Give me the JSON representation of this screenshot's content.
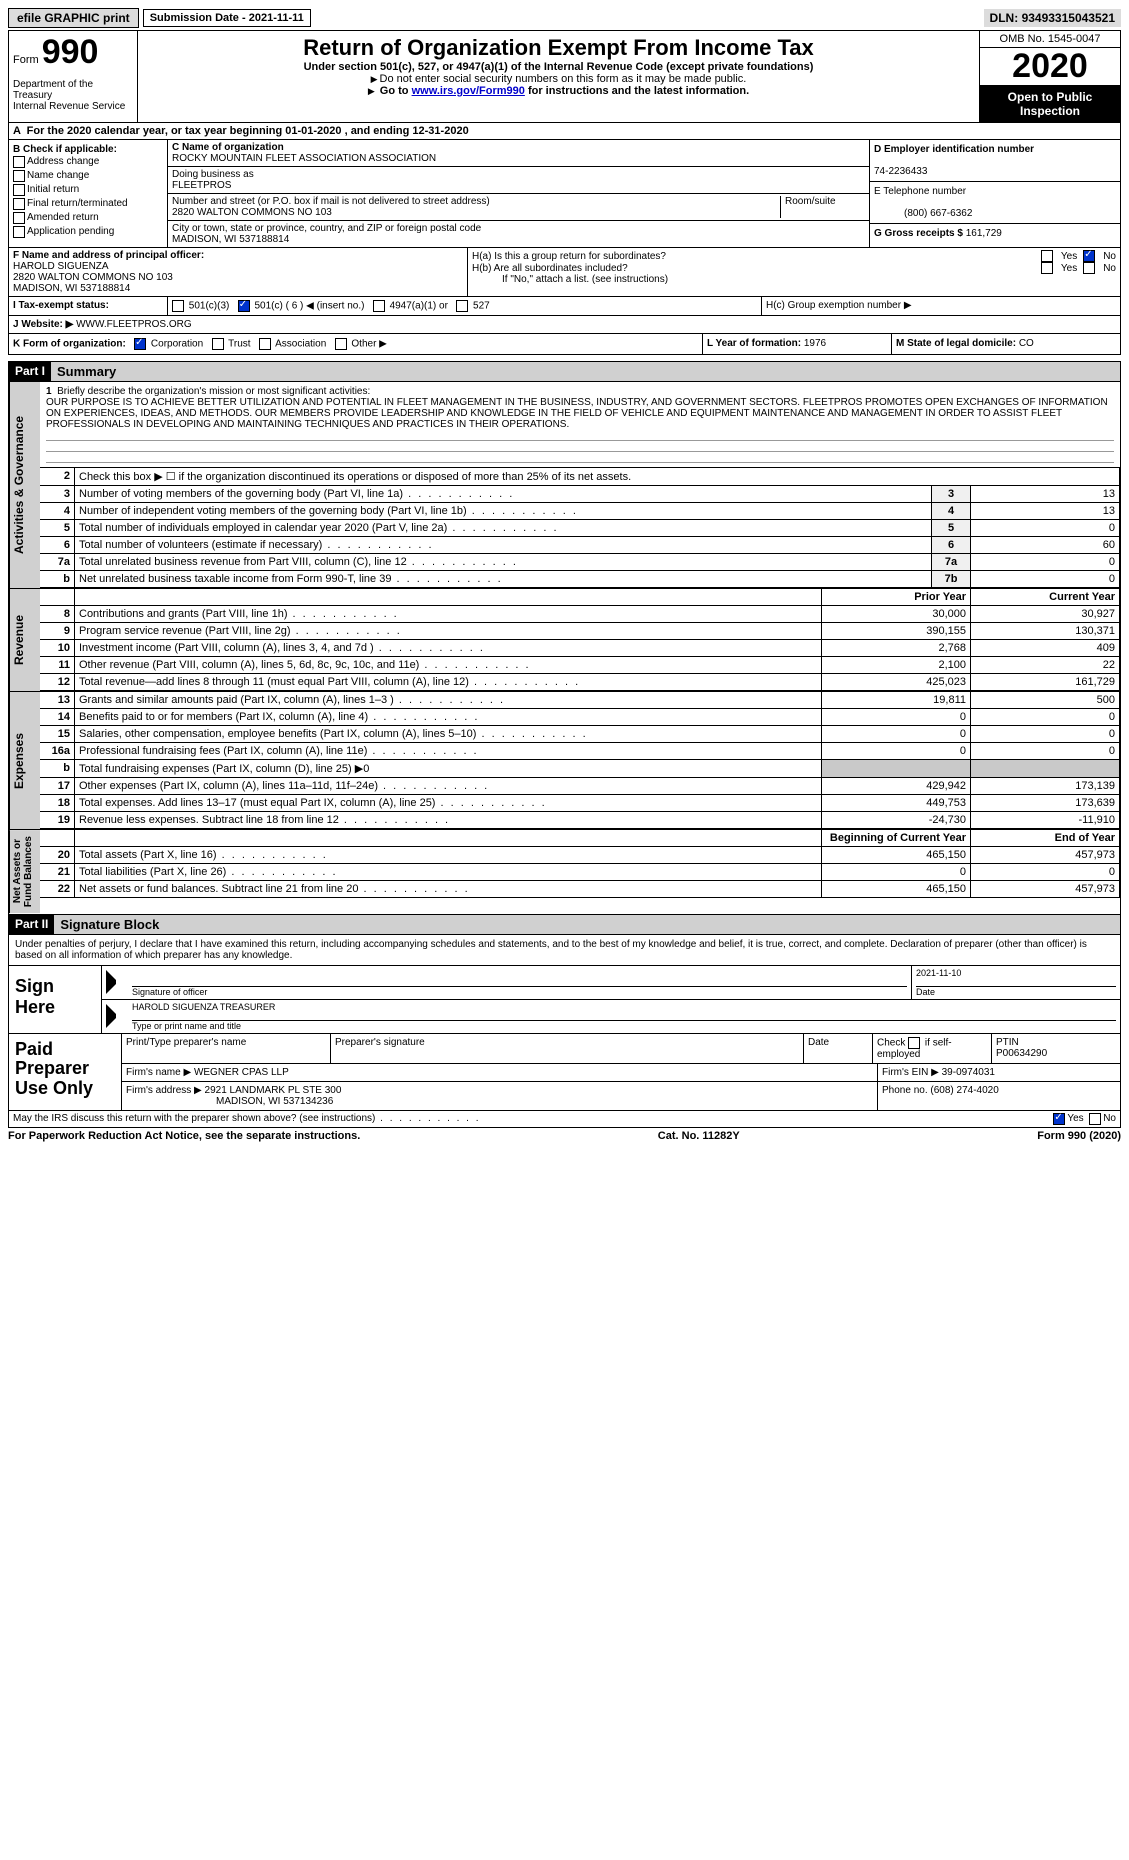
{
  "topbar": {
    "efile": "efile GRAPHIC print",
    "sub_label": "Submission Date -",
    "sub_date": "2021-11-11",
    "dln_label": "DLN:",
    "dln": "93493315043521"
  },
  "header": {
    "form_word": "Form",
    "form_num": "990",
    "dept": "Department of the Treasury\nInternal Revenue Service",
    "title": "Return of Organization Exempt From Income Tax",
    "sub1": "Under section 501(c), 527, or 4947(a)(1) of the Internal Revenue Code (except private foundations)",
    "sub2": "Do not enter social security numbers on this form as it may be made public.",
    "sub3_a": "Go to ",
    "sub3_link": "www.irs.gov/Form990",
    "sub3_b": " for instructions and the latest information.",
    "omb": "OMB No. 1545-0047",
    "year": "2020",
    "open": "Open to Public Inspection"
  },
  "rowA": "For the 2020 calendar year, or tax year beginning 01-01-2020   , and ending 12-31-2020",
  "boxB": {
    "title": "B Check if applicable:",
    "items": [
      "Address change",
      "Name change",
      "Initial return",
      "Final return/terminated",
      "Amended return",
      "Application pending"
    ]
  },
  "boxC": {
    "c_label": "C Name of organization",
    "org": "ROCKY MOUNTAIN FLEET ASSOCIATION ASSOCIATION",
    "dba_label": "Doing business as",
    "dba": "FLEETPROS",
    "addr_label": "Number and street (or P.O. box if mail is not delivered to street address)",
    "room_label": "Room/suite",
    "addr": "2820 WALTON COMMONS NO 103",
    "city_label": "City or town, state or province, country, and ZIP or foreign postal code",
    "city": "MADISON, WI  537188814"
  },
  "boxD": {
    "label": "D Employer identification number",
    "ein": "74-2236433"
  },
  "boxE": {
    "label": "E Telephone number",
    "phone": "(800) 667-6362"
  },
  "boxG": {
    "label": "G Gross receipts $",
    "amt": "161,729"
  },
  "boxF": {
    "label": "F  Name and address of principal officer:",
    "name": "HAROLD SIGUENZA",
    "addr1": "2820 WALTON COMMONS NO 103",
    "addr2": "MADISON, WI  537188814"
  },
  "boxH": {
    "ha": "H(a)  Is this a group return for subordinates?",
    "hb": "H(b)  Are all subordinates included?",
    "hb_note": "If \"No,\" attach a list. (see instructions)",
    "hc": "H(c)  Group exemption number ▶",
    "yes": "Yes",
    "no": "No"
  },
  "boxI": {
    "label": "I    Tax-exempt status:",
    "opts": [
      "501(c)(3)",
      "501(c) ( 6 ) ◀ (insert no.)",
      "4947(a)(1) or",
      "527"
    ]
  },
  "boxJ": {
    "label": "J   Website: ▶",
    "site": "WWW.FLEETPROS.ORG"
  },
  "boxK": {
    "label": "K Form of organization:",
    "opts": [
      "Corporation",
      "Trust",
      "Association",
      "Other ▶"
    ]
  },
  "boxL": {
    "label": "L Year of formation:",
    "val": "1976"
  },
  "boxM": {
    "label": "M State of legal domicile:",
    "val": "CO"
  },
  "part1": {
    "hdr": "Part I",
    "title": "Summary"
  },
  "vtabs": {
    "ag": "Activities & Governance",
    "rev": "Revenue",
    "exp": "Expenses",
    "na": "Net Assets or\nFund Balances"
  },
  "mission": {
    "q": "Briefly describe the organization's mission or most significant activities:",
    "text": "OUR PURPOSE IS TO ACHIEVE BETTER UTILIZATION AND POTENTIAL IN FLEET MANAGEMENT IN THE BUSINESS, INDUSTRY, AND GOVERNMENT SECTORS. FLEETPROS PROMOTES OPEN EXCHANGES OF INFORMATION ON EXPERIENCES, IDEAS, AND METHODS. OUR MEMBERS PROVIDE LEADERSHIP AND KNOWLEDGE IN THE FIELD OF VEHICLE AND EQUIPMENT MAINTENANCE AND MANAGEMENT IN ORDER TO ASSIST FLEET PROFESSIONALS IN DEVELOPING AND MAINTAINING TECHNIQUES AND PRACTICES IN THEIR OPERATIONS."
  },
  "lines_ag": [
    {
      "n": "2",
      "d": "Check this box ▶ ☐  if the organization discontinued its operations or disposed of more than 25% of its net assets."
    },
    {
      "n": "3",
      "d": "Number of voting members of the governing body (Part VI, line 1a)",
      "k": "3",
      "v": "13"
    },
    {
      "n": "4",
      "d": "Number of independent voting members of the governing body (Part VI, line 1b)",
      "k": "4",
      "v": "13"
    },
    {
      "n": "5",
      "d": "Total number of individuals employed in calendar year 2020 (Part V, line 2a)",
      "k": "5",
      "v": "0"
    },
    {
      "n": "6",
      "d": "Total number of volunteers (estimate if necessary)",
      "k": "6",
      "v": "60"
    },
    {
      "n": "7a",
      "d": "Total unrelated business revenue from Part VIII, column (C), line 12",
      "k": "7a",
      "v": "0"
    },
    {
      "n": "b",
      "d": "Net unrelated business taxable income from Form 990-T, line 39",
      "k": "7b",
      "v": "0"
    }
  ],
  "col_hdrs": {
    "py": "Prior Year",
    "cy": "Current Year",
    "boy": "Beginning of Current Year",
    "eoy": "End of Year"
  },
  "lines_rev": [
    {
      "n": "8",
      "d": "Contributions and grants (Part VIII, line 1h)",
      "py": "30,000",
      "cy": "30,927"
    },
    {
      "n": "9",
      "d": "Program service revenue (Part VIII, line 2g)",
      "py": "390,155",
      "cy": "130,371"
    },
    {
      "n": "10",
      "d": "Investment income (Part VIII, column (A), lines 3, 4, and 7d )",
      "py": "2,768",
      "cy": "409"
    },
    {
      "n": "11",
      "d": "Other revenue (Part VIII, column (A), lines 5, 6d, 8c, 9c, 10c, and 11e)",
      "py": "2,100",
      "cy": "22"
    },
    {
      "n": "12",
      "d": "Total revenue—add lines 8 through 11 (must equal Part VIII, column (A), line 12)",
      "py": "425,023",
      "cy": "161,729"
    }
  ],
  "lines_exp": [
    {
      "n": "13",
      "d": "Grants and similar amounts paid (Part IX, column (A), lines 1–3 )",
      "py": "19,811",
      "cy": "500"
    },
    {
      "n": "14",
      "d": "Benefits paid to or for members (Part IX, column (A), line 4)",
      "py": "0",
      "cy": "0"
    },
    {
      "n": "15",
      "d": "Salaries, other compensation, employee benefits (Part IX, column (A), lines 5–10)",
      "py": "0",
      "cy": "0"
    },
    {
      "n": "16a",
      "d": "Professional fundraising fees (Part IX, column (A), line 11e)",
      "py": "0",
      "cy": "0"
    },
    {
      "n": "b",
      "d": "Total fundraising expenses (Part IX, column (D), line 25) ▶0",
      "shade": true
    },
    {
      "n": "17",
      "d": "Other expenses (Part IX, column (A), lines 11a–11d, 11f–24e)",
      "py": "429,942",
      "cy": "173,139"
    },
    {
      "n": "18",
      "d": "Total expenses. Add lines 13–17 (must equal Part IX, column (A), line 25)",
      "py": "449,753",
      "cy": "173,639"
    },
    {
      "n": "19",
      "d": "Revenue less expenses. Subtract line 18 from line 12",
      "py": "-24,730",
      "cy": "-11,910"
    }
  ],
  "lines_na": [
    {
      "n": "20",
      "d": "Total assets (Part X, line 16)",
      "py": "465,150",
      "cy": "457,973"
    },
    {
      "n": "21",
      "d": "Total liabilities (Part X, line 26)",
      "py": "0",
      "cy": "0"
    },
    {
      "n": "22",
      "d": "Net assets or fund balances. Subtract line 21 from line 20",
      "py": "465,150",
      "cy": "457,973"
    }
  ],
  "part2": {
    "hdr": "Part II",
    "title": "Signature Block"
  },
  "sig": {
    "decl": "Under penalties of perjury, I declare that I have examined this return, including accompanying schedules and statements, and to the best of my knowledge and belief, it is true, correct, and complete. Declaration of preparer (other than officer) is based on all information of which preparer has any knowledge.",
    "here": "Sign Here",
    "sig_label": "Signature of officer",
    "date_label": "Date",
    "date": "2021-11-10",
    "name": "HAROLD SIGUENZA  TREASURER",
    "name_label": "Type or print name and title"
  },
  "prep": {
    "label": "Paid Preparer Use Only",
    "h1": "Print/Type preparer's name",
    "h2": "Preparer's signature",
    "h3": "Date",
    "h4a": "Check",
    "h4b": "if self-employed",
    "h5": "PTIN",
    "ptin": "P00634290",
    "firm_label": "Firm's name    ▶",
    "firm": "WEGNER CPAS LLP",
    "ein_label": "Firm's EIN ▶",
    "ein": "39-0974031",
    "addr_label": "Firm's address ▶",
    "addr1": "2921 LANDMARK PL STE 300",
    "addr2": "MADISON, WI  537134236",
    "phone_label": "Phone no.",
    "phone": "(608) 274-4020"
  },
  "discuss": {
    "q": "May the IRS discuss this return with the preparer shown above? (see instructions)",
    "yes": "Yes",
    "no": "No"
  },
  "footer": {
    "pra": "For Paperwork Reduction Act Notice, see the separate instructions.",
    "cat": "Cat. No. 11282Y",
    "form": "Form 990 (2020)"
  }
}
